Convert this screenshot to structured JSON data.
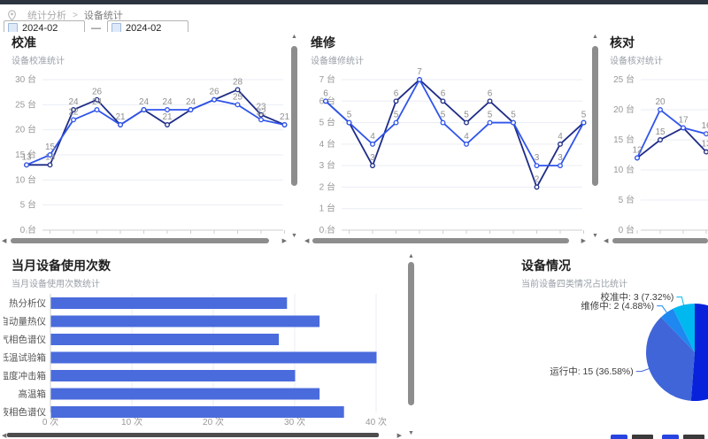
{
  "breadcrumb": {
    "icon": "location-pin-icon",
    "section": "统计分析",
    "separator": ">",
    "current": "设备统计"
  },
  "filters": {
    "start": "2024-02",
    "dash": "—",
    "end": "2024-02"
  },
  "colors": {
    "topbar": "#2c3440",
    "line_dark": "#1e2c87",
    "line_blue": "#2f54eb",
    "bar_blue": "#4a6bdc",
    "grid": "#e9edf4",
    "axis_text": "#999999",
    "point_label": "#8f8f8f"
  },
  "chart_data": [
    {
      "id": "calibration",
      "type": "line",
      "title": "校准",
      "subtitle": "设备校准统计",
      "y_unit": "台",
      "ylim": [
        0,
        30
      ],
      "y_ticks": [
        0,
        5,
        10,
        15,
        20,
        25,
        30
      ],
      "grid": true,
      "series": [
        {
          "color": "#1e2c87",
          "values": [
            13,
            13,
            24,
            26,
            21,
            24,
            21,
            24,
            26,
            28,
            23,
            21
          ]
        },
        {
          "color": "#2f54eb",
          "values": [
            13,
            15,
            22,
            24,
            21,
            24,
            24,
            24,
            26,
            25,
            22,
            21
          ]
        }
      ]
    },
    {
      "id": "repair",
      "type": "line",
      "title": "维修",
      "subtitle": "设备维修统计",
      "y_unit": "台",
      "ylim": [
        0,
        7
      ],
      "y_ticks": [
        0,
        1,
        2,
        3,
        4,
        5,
        6,
        7
      ],
      "grid": true,
      "series": [
        {
          "color": "#1e2c87",
          "values": [
            6,
            5,
            3,
            6,
            7,
            6,
            5,
            6,
            5,
            2,
            4,
            5
          ]
        },
        {
          "color": "#2f54eb",
          "values": [
            6,
            5,
            4,
            5,
            7,
            5,
            4,
            5,
            5,
            3,
            3,
            5
          ]
        }
      ]
    },
    {
      "id": "check",
      "type": "line",
      "title": "核对",
      "subtitle": "设备核对统计",
      "y_unit": "台",
      "ylim": [
        0,
        25
      ],
      "y_ticks": [
        0,
        5,
        10,
        15,
        20,
        25
      ],
      "grid": true,
      "series": [
        {
          "color": "#1e2c87",
          "values": [
            12,
            15,
            17,
            13
          ]
        },
        {
          "color": "#2f54eb",
          "values": [
            12,
            20,
            17,
            16
          ]
        }
      ]
    },
    {
      "id": "usage",
      "type": "bar",
      "title": "当月设备使用次数",
      "subtitle": "当月设备使用次数统计",
      "x_unit": "次",
      "xlim": [
        0,
        40
      ],
      "x_ticks": [
        0,
        10,
        20,
        30,
        40
      ],
      "bar_color": "#4a6bdc",
      "categories": [
        "热分析仪",
        "自动量热仪",
        "气相色谱仪",
        "低温试验箱",
        "温度冲击箱",
        "高温箱",
        "液相色谱仪"
      ],
      "values": [
        29,
        33,
        28,
        40,
        30,
        33,
        36
      ]
    },
    {
      "id": "status",
      "type": "pie",
      "title": "设备情况",
      "subtitle": "当前设备四类情况占比统计",
      "order": "clockwise-from-top",
      "slices": [
        {
          "label": "",
          "percent": 51.22,
          "color": "#0822dc"
        },
        {
          "label": "运行中: 15 (36.58%)",
          "value": 15,
          "percent": 36.58,
          "color": "#4065d8"
        },
        {
          "label": "维修中: 2 (4.88%)",
          "value": 2,
          "percent": 4.88,
          "color": "#1e88f0"
        },
        {
          "label": "校准中: 3 (7.32%)",
          "value": 3,
          "percent": 7.32,
          "color": "#00b8f0"
        }
      ]
    }
  ]
}
